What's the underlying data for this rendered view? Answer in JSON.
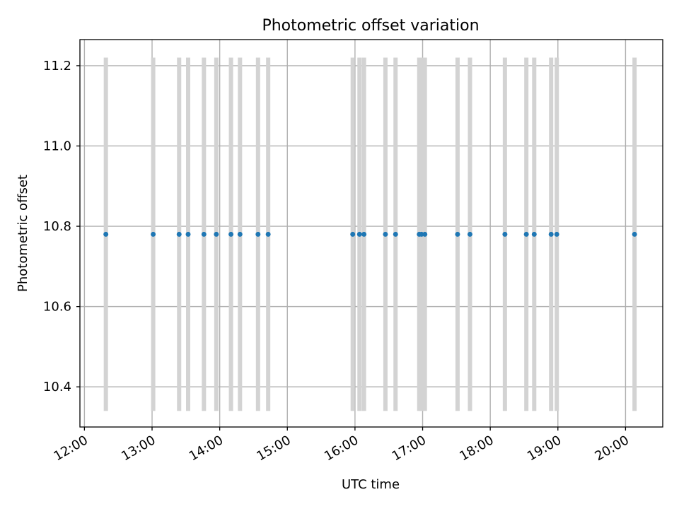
{
  "chart_data": {
    "type": "scatter",
    "title": "Photometric offset variation",
    "xlabel": "UTC time",
    "ylabel": "Photometric offset",
    "xlim": [
      "11:56",
      "20:33"
    ],
    "ylim": [
      10.3,
      11.265
    ],
    "x_ticks": [
      "12:00",
      "13:00",
      "14:00",
      "15:00",
      "16:00",
      "17:00",
      "18:00",
      "19:00",
      "20:00"
    ],
    "y_ticks": [
      10.4,
      10.6,
      10.8,
      11.0,
      11.2
    ],
    "grid": true,
    "error_bar_color": "#d3d3d3",
    "point_color": "#1f77b4",
    "points": [
      {
        "x": "12:19",
        "y": 10.78,
        "yerr": 0.44
      },
      {
        "x": "13:01",
        "y": 10.78,
        "yerr": 0.44
      },
      {
        "x": "13:24",
        "y": 10.78,
        "yerr": 0.44
      },
      {
        "x": "13:32",
        "y": 10.78,
        "yerr": 0.44
      },
      {
        "x": "13:46",
        "y": 10.78,
        "yerr": 0.44
      },
      {
        "x": "13:57",
        "y": 10.78,
        "yerr": 0.44
      },
      {
        "x": "14:10",
        "y": 10.78,
        "yerr": 0.44
      },
      {
        "x": "14:18",
        "y": 10.78,
        "yerr": 0.44
      },
      {
        "x": "14:34",
        "y": 10.78,
        "yerr": 0.44
      },
      {
        "x": "14:43",
        "y": 10.78,
        "yerr": 0.44
      },
      {
        "x": "15:58",
        "y": 10.78,
        "yerr": 0.44
      },
      {
        "x": "16:04",
        "y": 10.78,
        "yerr": 0.44
      },
      {
        "x": "16:08",
        "y": 10.78,
        "yerr": 0.44
      },
      {
        "x": "16:27",
        "y": 10.78,
        "yerr": 0.44
      },
      {
        "x": "16:36",
        "y": 10.78,
        "yerr": 0.44
      },
      {
        "x": "16:57",
        "y": 10.78,
        "yerr": 0.44
      },
      {
        "x": "16:59",
        "y": 10.78,
        "yerr": 0.44
      },
      {
        "x": "17:02",
        "y": 10.78,
        "yerr": 0.44
      },
      {
        "x": "17:31",
        "y": 10.78,
        "yerr": 0.44
      },
      {
        "x": "17:42",
        "y": 10.78,
        "yerr": 0.44
      },
      {
        "x": "18:13",
        "y": 10.78,
        "yerr": 0.44
      },
      {
        "x": "18:32",
        "y": 10.78,
        "yerr": 0.44
      },
      {
        "x": "18:39",
        "y": 10.78,
        "yerr": 0.44
      },
      {
        "x": "18:54",
        "y": 10.78,
        "yerr": 0.44
      },
      {
        "x": "18:59",
        "y": 10.78,
        "yerr": 0.44
      },
      {
        "x": "20:08",
        "y": 10.78,
        "yerr": 0.44
      }
    ]
  }
}
